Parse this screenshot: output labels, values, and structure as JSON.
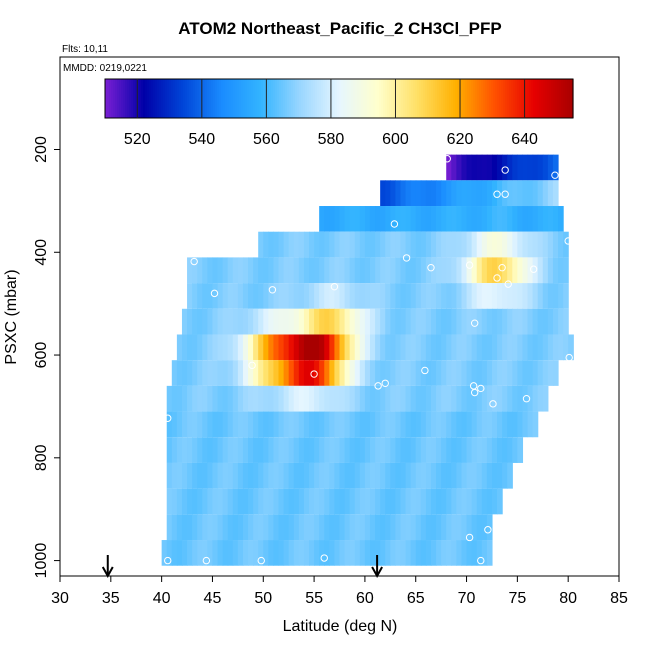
{
  "chart_data": {
    "type": "heatmap",
    "title": "ATOM2 Northeast_Pacific_2 CH3Cl_PFP",
    "flights_label": "Flts: 10,11",
    "mmdd_label": "MMDD: 0219,0221",
    "xlabel": "Latitude (deg N)",
    "ylabel": "PSXC (mbar)",
    "xlim": [
      30,
      85
    ],
    "ylim": [
      1030,
      20
    ],
    "x_ticks": [
      30,
      35,
      40,
      45,
      50,
      55,
      60,
      65,
      70,
      75,
      80,
      85
    ],
    "x_tick_labels": [
      "30",
      "35",
      "40",
      "45",
      "50",
      "55",
      "60",
      "65",
      "70",
      "75",
      "80",
      "85"
    ],
    "y_ticks": [
      200,
      400,
      600,
      800,
      1000
    ],
    "y_tick_labels": [
      "200",
      "400",
      "600",
      "800",
      "1000"
    ],
    "colorbar": {
      "range": [
        510,
        655
      ],
      "ticks": [
        520,
        540,
        560,
        580,
        600,
        620,
        640
      ],
      "tick_labels": [
        "520",
        "540",
        "560",
        "580",
        "600",
        "620",
        "640"
      ]
    },
    "arrows_latitude": [
      34.7,
      61.2
    ],
    "value_centers": [
      {
        "lat": 55,
        "p": 610,
        "value": 648
      },
      {
        "lat": 51,
        "p": 600,
        "value": 615
      },
      {
        "lat": 73,
        "p": 430,
        "value": 610
      },
      {
        "lat": 57,
        "p": 545,
        "value": 600
      }
    ],
    "samples": [
      {
        "lat": 68.1,
        "p": 218
      },
      {
        "lat": 73.8,
        "p": 240
      },
      {
        "lat": 78.7,
        "p": 250
      },
      {
        "lat": 73.0,
        "p": 287
      },
      {
        "lat": 73.8,
        "p": 287
      },
      {
        "lat": 62.9,
        "p": 345
      },
      {
        "lat": 80.0,
        "p": 378
      },
      {
        "lat": 64.1,
        "p": 411
      },
      {
        "lat": 66.5,
        "p": 430
      },
      {
        "lat": 70.3,
        "p": 425
      },
      {
        "lat": 73.5,
        "p": 430
      },
      {
        "lat": 76.6,
        "p": 433
      },
      {
        "lat": 73.0,
        "p": 450
      },
      {
        "lat": 74.1,
        "p": 462
      },
      {
        "lat": 43.2,
        "p": 418
      },
      {
        "lat": 57.0,
        "p": 467
      },
      {
        "lat": 50.9,
        "p": 473
      },
      {
        "lat": 45.2,
        "p": 480
      },
      {
        "lat": 70.8,
        "p": 538
      },
      {
        "lat": 48.9,
        "p": 620
      },
      {
        "lat": 55.0,
        "p": 637
      },
      {
        "lat": 65.9,
        "p": 630
      },
      {
        "lat": 80.1,
        "p": 605
      },
      {
        "lat": 62.0,
        "p": 655
      },
      {
        "lat": 61.3,
        "p": 660
      },
      {
        "lat": 70.7,
        "p": 660
      },
      {
        "lat": 71.4,
        "p": 665
      },
      {
        "lat": 70.8,
        "p": 673
      },
      {
        "lat": 75.9,
        "p": 685
      },
      {
        "lat": 72.6,
        "p": 695
      },
      {
        "lat": 40.6,
        "p": 723
      },
      {
        "lat": 72.1,
        "p": 940
      },
      {
        "lat": 70.3,
        "p": 955
      },
      {
        "lat": 56.0,
        "p": 995
      },
      {
        "lat": 40.6,
        "p": 1000
      },
      {
        "lat": 44.4,
        "p": 1000
      },
      {
        "lat": 49.8,
        "p": 1000
      },
      {
        "lat": 71.4,
        "p": 1000
      }
    ]
  },
  "colors": {
    "scale": [
      "#7a1fd4",
      "#0000a8",
      "#0045d8",
      "#1a8cff",
      "#33b4ff",
      "#99d6ff",
      "#e6f6ff",
      "#ffffcc",
      "#ffe066",
      "#ffb000",
      "#ff5000",
      "#e60000",
      "#a80000"
    ]
  }
}
